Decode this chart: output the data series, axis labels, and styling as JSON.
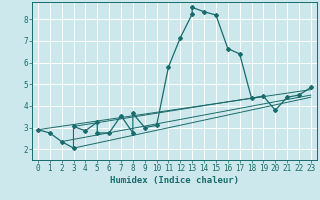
{
  "xlabel": "Humidex (Indice chaleur)",
  "bg_color": "#cce8ec",
  "line_color": "#1a6b6b",
  "grid_color": "#ffffff",
  "xlim": [
    -0.5,
    23.5
  ],
  "ylim": [
    1.5,
    8.8
  ],
  "xticks": [
    0,
    1,
    2,
    3,
    4,
    5,
    6,
    7,
    8,
    9,
    10,
    11,
    12,
    13,
    14,
    15,
    16,
    17,
    18,
    19,
    20,
    21,
    22,
    23
  ],
  "yticks": [
    2,
    3,
    4,
    5,
    6,
    7,
    8
  ],
  "series": [
    [
      0,
      2.9
    ],
    [
      1,
      2.75
    ],
    [
      2,
      2.35
    ],
    [
      3,
      2.05
    ],
    [
      3,
      3.05
    ],
    [
      4,
      2.85
    ],
    [
      5,
      3.25
    ],
    [
      5,
      2.75
    ],
    [
      6,
      2.75
    ],
    [
      7,
      3.55
    ],
    [
      8,
      2.75
    ],
    [
      8,
      3.65
    ],
    [
      9,
      3.0
    ],
    [
      10,
      3.1
    ],
    [
      11,
      5.8
    ],
    [
      12,
      7.15
    ],
    [
      13,
      8.25
    ],
    [
      13,
      8.55
    ],
    [
      14,
      8.35
    ],
    [
      15,
      8.2
    ],
    [
      16,
      6.65
    ],
    [
      17,
      6.4
    ],
    [
      18,
      4.35
    ],
    [
      19,
      4.45
    ],
    [
      20,
      3.8
    ],
    [
      21,
      4.4
    ],
    [
      22,
      4.5
    ],
    [
      23,
      4.85
    ]
  ],
  "extra_lines": [
    [
      [
        0,
        2.9
      ],
      [
        23,
        4.75
      ]
    ],
    [
      [
        2,
        2.35
      ],
      [
        23,
        4.5
      ]
    ],
    [
      [
        3,
        2.05
      ],
      [
        23,
        4.4
      ]
    ],
    [
      [
        3,
        3.05
      ],
      [
        19,
        4.45
      ]
    ]
  ]
}
